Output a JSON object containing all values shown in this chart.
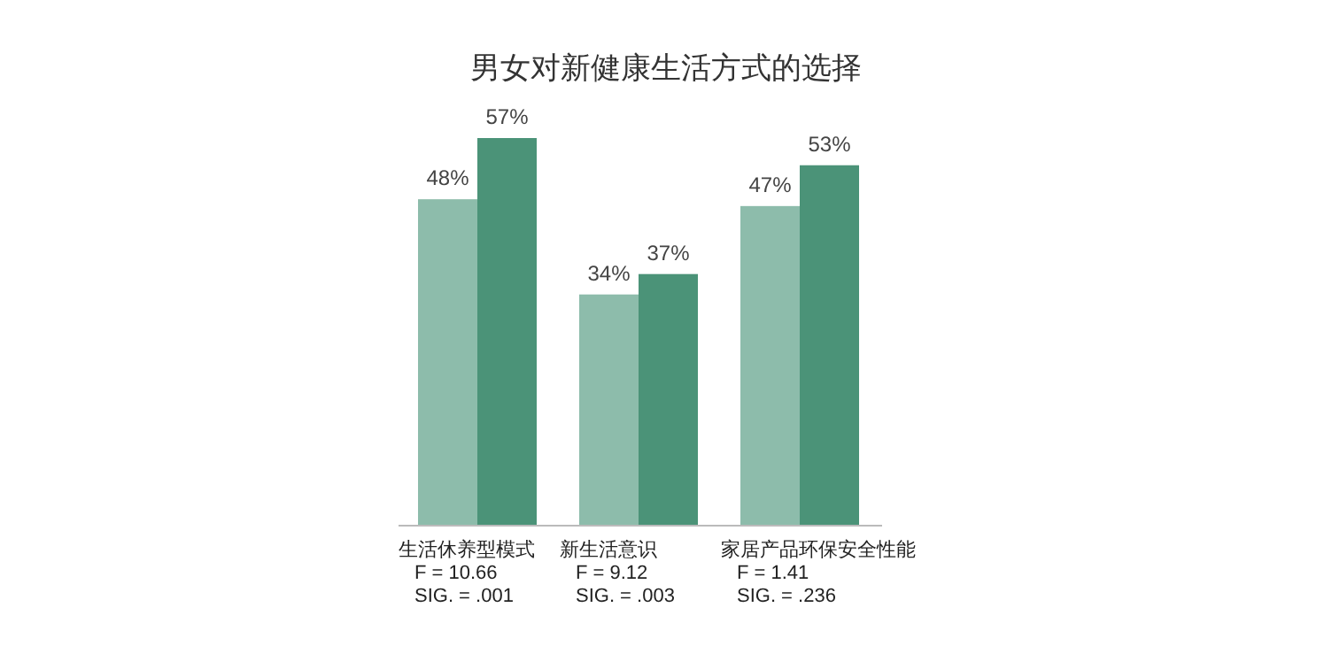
{
  "chart_data": {
    "type": "bar",
    "title": "男女对新健康生活方式的选择",
    "categories": [
      "生活休养型模式",
      "新生活意识",
      "家居产品环保安全性能"
    ],
    "series": [
      {
        "color": "#8dbcab",
        "values": [
          48,
          34,
          47
        ],
        "value_labels": [
          "48%",
          "34%",
          "47%"
        ]
      },
      {
        "color": "#4b9378",
        "values": [
          57,
          37,
          53
        ],
        "value_labels": [
          "57%",
          "37%",
          "53%"
        ]
      }
    ],
    "annotations": [
      "F = 10.66",
      "SIG. = .001",
      "F = 9.12",
      "SIG. = .003",
      "F = 1.41",
      "SIG. = .236"
    ]
  }
}
